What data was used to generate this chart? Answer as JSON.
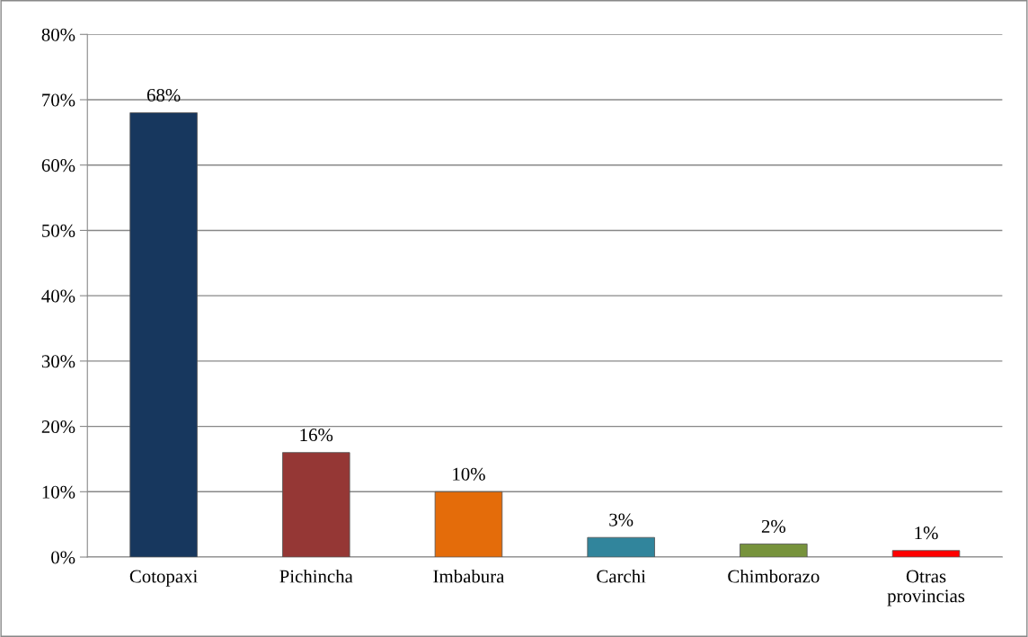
{
  "chart_data": {
    "type": "bar",
    "categories": [
      "Cotopaxi",
      "Pichincha",
      "Imbabura",
      "Carchi",
      "Chimborazo",
      "Otras\nprovincias"
    ],
    "values": [
      68,
      16,
      10,
      3,
      2,
      1
    ],
    "colors": [
      "#17375e",
      "#953735",
      "#e46c0a",
      "#31859c",
      "#77933c",
      "#ff0000"
    ],
    "value_labels": [
      "68%",
      "16%",
      "10%",
      "3%",
      "2%",
      "1%"
    ],
    "ylim": [
      0,
      80
    ],
    "yticks": [
      {
        "value": 0,
        "label": "0%"
      },
      {
        "value": 10,
        "label": "10%"
      },
      {
        "value": 20,
        "label": "20%"
      },
      {
        "value": 30,
        "label": "30%"
      },
      {
        "value": 40,
        "label": "40%"
      },
      {
        "value": 50,
        "label": "50%"
      },
      {
        "value": 60,
        "label": "60%"
      },
      {
        "value": 70,
        "label": "70%"
      },
      {
        "value": 80,
        "label": "80%"
      }
    ],
    "grid": "y"
  }
}
